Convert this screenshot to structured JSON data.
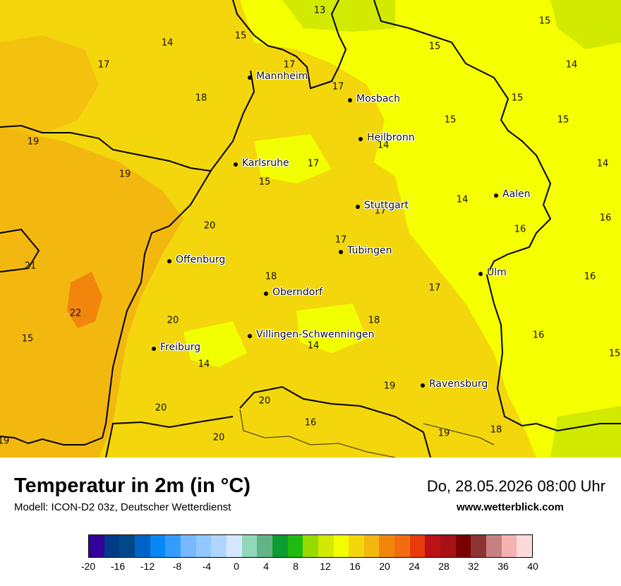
{
  "title": "Temperatur in 2m (in °C)",
  "model": "Modell: ICON-D2 03z, Deutscher Wetterdienst",
  "datetime": "Do, 28.05.2026 08:00 Uhr",
  "website": "www.wetterblick.com",
  "cities": [
    "Mannheim",
    "Mosbach",
    "Heilbronn",
    "Karlsruhe",
    "Stuttgart",
    "Aalen",
    "Tübingen",
    "Offenburg",
    "Oberndorf",
    "Ulm",
    "Villingen-Schwenningen",
    "Freiburg",
    "Ravensburg"
  ],
  "temperature_labels": [
    "13",
    "15",
    "15",
    "14",
    "17",
    "17",
    "14",
    "18",
    "17",
    "15",
    "15",
    "15",
    "19",
    "19",
    "14",
    "17",
    "14",
    "15",
    "15",
    "14",
    "17",
    "20",
    "16",
    "16",
    "17",
    "21",
    "18",
    "17",
    "16",
    "22",
    "20",
    "18",
    "15",
    "16",
    "14",
    "14",
    "15",
    "20",
    "19",
    "20",
    "16",
    "19",
    "18",
    "19",
    "20"
  ],
  "legend": {
    "colors": [
      "#330099",
      "#003b88",
      "#004888",
      "#0063c8",
      "#0888f5",
      "#349cff",
      "#78b8ff",
      "#90c8ff",
      "#b0d6ff",
      "#d6e8ff",
      "#90d8b8",
      "#63b388",
      "#0c9c30",
      "#20bb10",
      "#98da00",
      "#d2ea00",
      "#f2ff00",
      "#f3d60c",
      "#f3b810",
      "#f2860d",
      "#f16d10",
      "#e83a0b",
      "#ba1216",
      "#a81216",
      "#7a0000",
      "#8f3434",
      "#c78080",
      "#f4b2b2",
      "#fddada"
    ],
    "ticks": [
      "-20",
      "-16",
      "-12",
      "-8",
      "-4",
      "0",
      "4",
      "8",
      "12",
      "16",
      "20",
      "24",
      "28",
      "32",
      "36",
      "40"
    ]
  },
  "colors": {
    "warm": "#f3b810",
    "mid": "#f3d60c",
    "cool": "#f2ff00",
    "cold": "#d2ea00"
  }
}
